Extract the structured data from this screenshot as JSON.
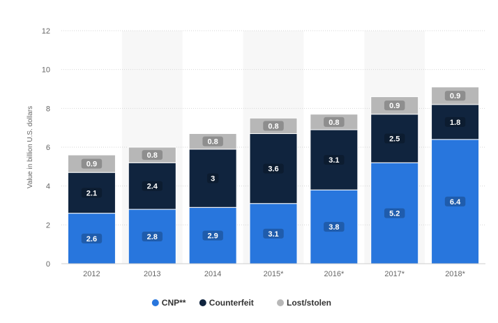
{
  "chart_data": {
    "type": "bar",
    "stacked": true,
    "categories": [
      "2012",
      "2013",
      "2014",
      "2015*",
      "2016*",
      "2017*",
      "2018*"
    ],
    "series": [
      {
        "name": "CNP**",
        "color": "#2876dd",
        "values": [
          2.6,
          2.8,
          2.9,
          3.1,
          3.8,
          5.2,
          6.4
        ]
      },
      {
        "name": "Counterfeit",
        "color": "#10243e",
        "values": [
          2.1,
          2.4,
          3,
          3.6,
          3.1,
          2.5,
          1.8
        ]
      },
      {
        "name": "Lost/stolen",
        "color": "#b7b7b7",
        "values": [
          0.9,
          0.8,
          0.8,
          0.8,
          0.8,
          0.9,
          0.9
        ]
      }
    ],
    "ylabel": "Value in billion U.S. dollars",
    "xlabel": "",
    "ylim": [
      0,
      12
    ],
    "yticks": [
      0,
      2,
      4,
      6,
      8,
      10,
      12
    ],
    "grid": true,
    "legend": "bottom-center"
  }
}
